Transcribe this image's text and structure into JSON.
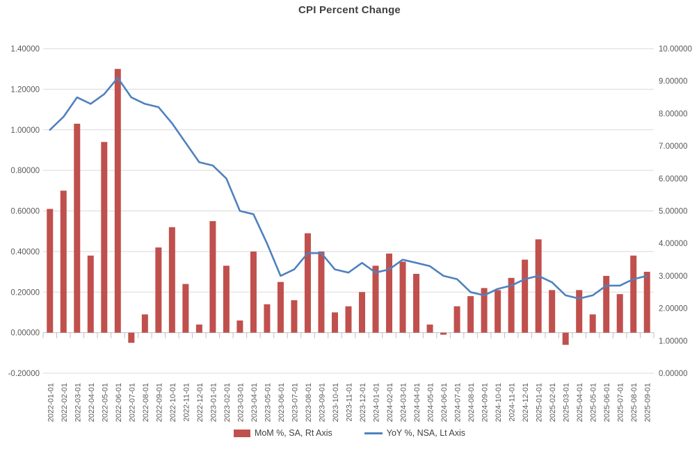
{
  "title": "CPI Percent Change",
  "chart_data": {
    "type": "combo-bar-line",
    "title": "CPI Percent Change",
    "xlabel": "",
    "ylabel_left": "",
    "ylabel_right": "",
    "grid": true,
    "legend_position": "bottom",
    "gridline_color": "#D9D9D9",
    "axis_line_color": "#BFBFBF",
    "tick_text_color": "#595959",
    "categories": [
      "2022-01-01",
      "2022-02-01",
      "2022-03-01",
      "2022-04-01",
      "2022-05-01",
      "2022-06-01",
      "2022-07-01",
      "2022-08-01",
      "2022-09-01",
      "2022-10-01",
      "2022-11-01",
      "2022-12-01",
      "2023-01-01",
      "2023-02-01",
      "2023-03-01",
      "2023-04-01",
      "2023-05-01",
      "2023-06-01",
      "2023-07-01",
      "2023-08-01",
      "2023-09-01",
      "2023-10-01",
      "2023-11-01",
      "2023-12-01",
      "2024-01-01",
      "2024-02-01",
      "2024-03-01",
      "2024-04-01",
      "2024-05-01",
      "2024-06-01",
      "2024-07-01",
      "2024-08-01",
      "2024-09-01",
      "2024-10-01",
      "2024-11-01",
      "2024-12-01",
      "2025-01-01",
      "2025-02-01",
      "2025-03-01",
      "2025-04-01",
      "2025-05-01",
      "2025-06-01",
      "2025-07-01",
      "2025-08-01",
      "2025-09-01"
    ],
    "series": [
      {
        "name": "MoM %, SA, Rt Axis",
        "type": "bar",
        "color": "#C0504D",
        "scale": "left",
        "values": [
          0.61,
          0.7,
          1.03,
          0.38,
          0.94,
          1.3,
          -0.05,
          0.09,
          0.42,
          0.52,
          0.24,
          0.04,
          0.55,
          0.33,
          0.06,
          0.4,
          0.14,
          0.25,
          0.16,
          0.49,
          0.4,
          0.1,
          0.13,
          0.2,
          0.33,
          0.39,
          0.35,
          0.29,
          0.04,
          -0.01,
          0.13,
          0.18,
          0.22,
          0.21,
          0.27,
          0.36,
          0.46,
          0.21,
          -0.06,
          0.21,
          0.09,
          0.28,
          0.19,
          0.38,
          0.3
        ]
      },
      {
        "name": "YoY %, NSA, Lt Axis",
        "type": "line",
        "color": "#4F81BD",
        "scale": "right",
        "values": [
          7.5,
          7.9,
          8.5,
          8.3,
          8.6,
          9.1,
          8.5,
          8.3,
          8.2,
          7.7,
          7.1,
          6.5,
          6.4,
          6.0,
          5.0,
          4.9,
          4.0,
          3.0,
          3.2,
          3.7,
          3.7,
          3.2,
          3.1,
          3.4,
          3.1,
          3.2,
          3.5,
          3.4,
          3.3,
          3.0,
          2.9,
          2.5,
          2.4,
          2.6,
          2.7,
          2.9,
          3.0,
          2.8,
          2.4,
          2.3,
          2.4,
          2.7,
          2.7,
          2.9,
          3.0
        ]
      }
    ],
    "left_axis": {
      "min": -0.2,
      "max": 1.4,
      "step": 0.2,
      "tick_labels": [
        "1.40000",
        "1.20000",
        "1.00000",
        "0.80000",
        "0.60000",
        "0.40000",
        "0.20000",
        "0.00000",
        "-0.20000"
      ]
    },
    "right_axis": {
      "min": 0,
      "max": 10,
      "step": 1,
      "tick_labels": [
        "10.00000",
        "9.00000",
        "8.00000",
        "7.00000",
        "6.00000",
        "5.00000",
        "4.00000",
        "3.00000",
        "2.00000",
        "1.00000",
        "0.00000"
      ]
    }
  }
}
